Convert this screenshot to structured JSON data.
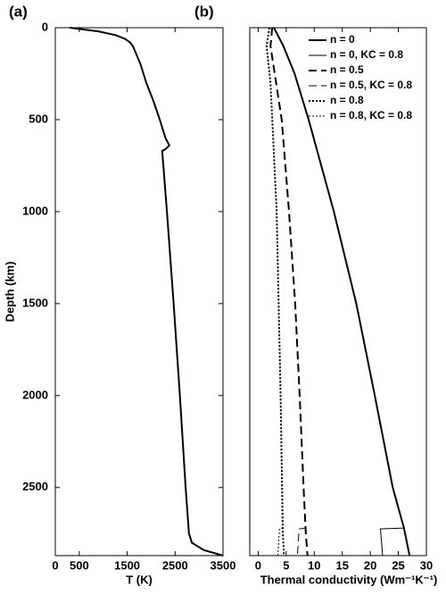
{
  "chart_data": [
    {
      "type": "line",
      "title": "(a)",
      "x_label": "T (K)",
      "y_label": "Depth (km)",
      "xlim": [
        0,
        3500
      ],
      "xticks": [
        0,
        500,
        1500,
        2500,
        3500
      ],
      "ylim": [
        2870,
        0
      ],
      "yticks": [
        0,
        500,
        1000,
        1500,
        2000,
        2500
      ],
      "series": [
        {
          "color": "#000000",
          "width": 2,
          "dash": "solid",
          "x": [
            300,
            900,
            1250,
            1450,
            1560,
            1620,
            1700,
            1780,
            1900,
            2050,
            2180,
            2300,
            2380,
            2300,
            2230,
            2240,
            2330,
            2470,
            2600,
            2720,
            2790,
            2850,
            3100,
            3500
          ],
          "values": [
            0,
            20,
            40,
            60,
            80,
            100,
            150,
            200,
            300,
            400,
            500,
            600,
            640,
            660,
            670,
            700,
            1000,
            1500,
            2000,
            2500,
            2750,
            2800,
            2840,
            2870
          ]
        }
      ]
    },
    {
      "type": "line",
      "title": "(b)",
      "x_label": "Thermal conductivity (Wm⁻¹K⁻¹)",
      "xlim": [
        -1.5,
        30
      ],
      "xticks": [
        0,
        5,
        10,
        15,
        20,
        25,
        30
      ],
      "ylim": [
        2870,
        0
      ],
      "legend": "upper right",
      "series": [
        {
          "name": "n = 0",
          "color": "#000000",
          "width": 2,
          "dash": "solid",
          "x": [
            2.8,
            4.5,
            6.5,
            9,
            13.5,
            17.5,
            20.8,
            24,
            26,
            27
          ],
          "values": [
            0,
            100,
            250,
            500,
            1000,
            1500,
            2000,
            2500,
            2720,
            2870
          ]
        },
        {
          "name": "n = 0, KC = 0.8",
          "color": "#000000",
          "width": 1,
          "dash": "solid",
          "x": [
            2.8,
            4.5,
            6.5,
            9,
            13.5,
            17.5,
            20.8,
            24,
            26,
            21.8,
            22.2
          ],
          "values": [
            0,
            100,
            250,
            500,
            1000,
            1500,
            2000,
            2500,
            2720,
            2725,
            2870
          ]
        },
        {
          "name": "n = 0.5",
          "color": "#000000",
          "width": 2,
          "dash": "dashed",
          "x": [
            2.5,
            2.2,
            3.2,
            4.2,
            5.5,
            6.6,
            7.4,
            8.1,
            8.5,
            8.8
          ],
          "values": [
            0,
            100,
            300,
            500,
            1000,
            1500,
            2000,
            2500,
            2750,
            2870
          ]
        },
        {
          "name": "n = 0.5, KC = 0.8",
          "color": "#000000",
          "width": 1,
          "dash": "dashed",
          "x": [
            2.5,
            2.2,
            3.2,
            4.2,
            5.5,
            6.6,
            7.4,
            8.1,
            8.4,
            7.3,
            7.0
          ],
          "values": [
            0,
            100,
            300,
            500,
            1000,
            1500,
            2000,
            2500,
            2720,
            2725,
            2870
          ]
        },
        {
          "name": "n = 0.8",
          "color": "#000000",
          "width": 2,
          "dash": "dotted",
          "x": [
            2,
            1.5,
            2.2,
            3.3,
            4,
            4.4,
            4.6
          ],
          "values": [
            0,
            100,
            300,
            1000,
            2000,
            2750,
            2870
          ]
        },
        {
          "name": "n = 0.8, KC = 0.8",
          "color": "#000000",
          "width": 1,
          "dash": "dotted",
          "x": [
            2,
            1.5,
            2.2,
            3.3,
            4,
            4.3,
            3.8,
            3.5
          ],
          "values": [
            0,
            100,
            300,
            1000,
            2000,
            2720,
            2725,
            2870
          ]
        }
      ]
    }
  ]
}
